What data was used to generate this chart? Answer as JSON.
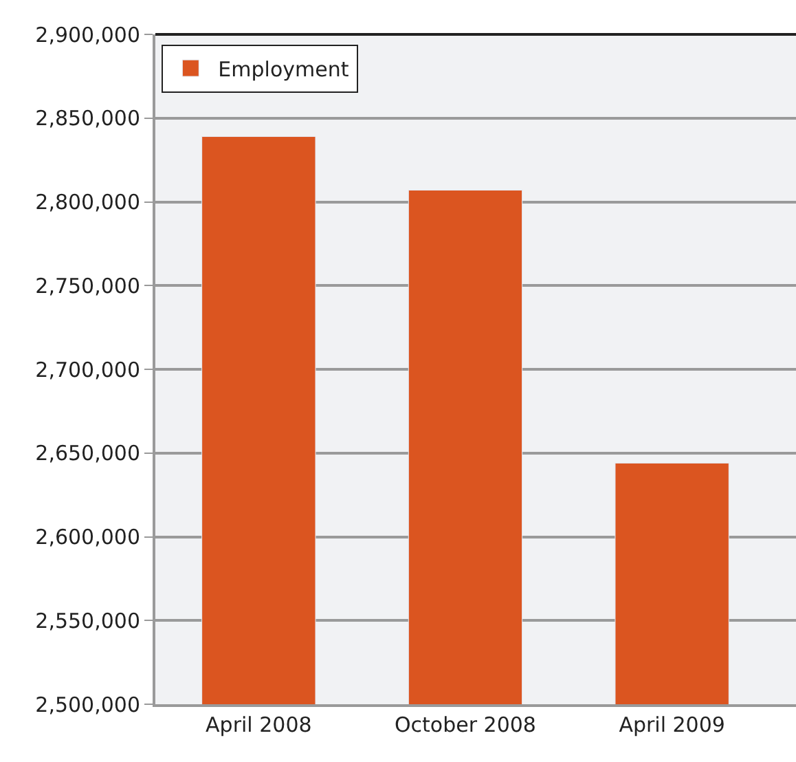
{
  "chart_data": {
    "type": "bar",
    "categories": [
      "April 2008",
      "October 2008",
      "April 2009"
    ],
    "series": [
      {
        "name": "Employment",
        "color": "#db5520",
        "values": [
          2839000,
          2807000,
          2644000
        ]
      }
    ],
    "ylim": [
      2500000,
      2900000
    ],
    "yticks": [
      {
        "value": 2500000,
        "label": "2,500,000"
      },
      {
        "value": 2550000,
        "label": "2,550,000"
      },
      {
        "value": 2600000,
        "label": "2,600,000"
      },
      {
        "value": 2650000,
        "label": "2,650,000"
      },
      {
        "value": 2700000,
        "label": "2,700,000"
      },
      {
        "value": 2750000,
        "label": "2,750,000"
      },
      {
        "value": 2800000,
        "label": "2,800,000"
      },
      {
        "value": 2850000,
        "label": "2,850,000"
      },
      {
        "value": 2900000,
        "label": "2,900,000"
      }
    ],
    "grid": "y",
    "legend": "top left"
  }
}
